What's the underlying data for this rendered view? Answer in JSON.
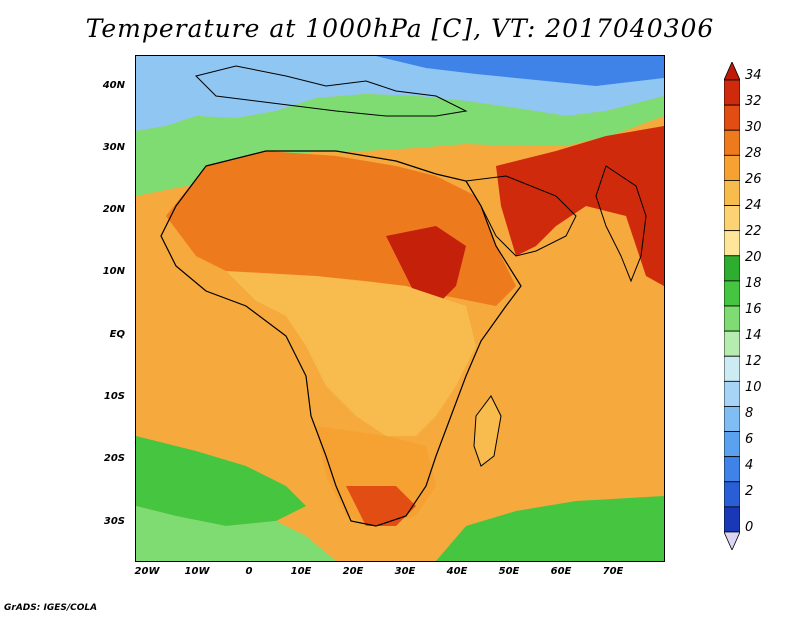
{
  "title": "Temperature at 1000hPa [C], VT: 2017040306",
  "credit": "GrADS: IGES/COLA",
  "map": {
    "lat_labels": [
      "40N",
      "30N",
      "20N",
      "10N",
      "EQ",
      "10S",
      "20S",
      "30S"
    ],
    "lon_labels": [
      "20W",
      "10W",
      "0",
      "10E",
      "20E",
      "30E",
      "40E",
      "50E",
      "60E",
      "70E"
    ]
  },
  "colorbar": {
    "labels": [
      "34",
      "32",
      "30",
      "28",
      "26",
      "24",
      "22",
      "20",
      "18",
      "16",
      "14",
      "12",
      "10",
      "8",
      "6",
      "4",
      "2",
      "0"
    ],
    "colors": [
      "#0c1f8c",
      "#1838b8",
      "#2a5ed6",
      "#3f83e8",
      "#5aa2f0",
      "#7fbdf4",
      "#a6d4f6",
      "#ccebf2",
      "#b7ecb1",
      "#7fdc72",
      "#46c640",
      "#2eae2e",
      "#fde59a",
      "#fcd273",
      "#f8bb4e",
      "#f5a233",
      "#ee7a1e",
      "#e14d12",
      "#d02a0c",
      "#bd1a08"
    ]
  }
}
